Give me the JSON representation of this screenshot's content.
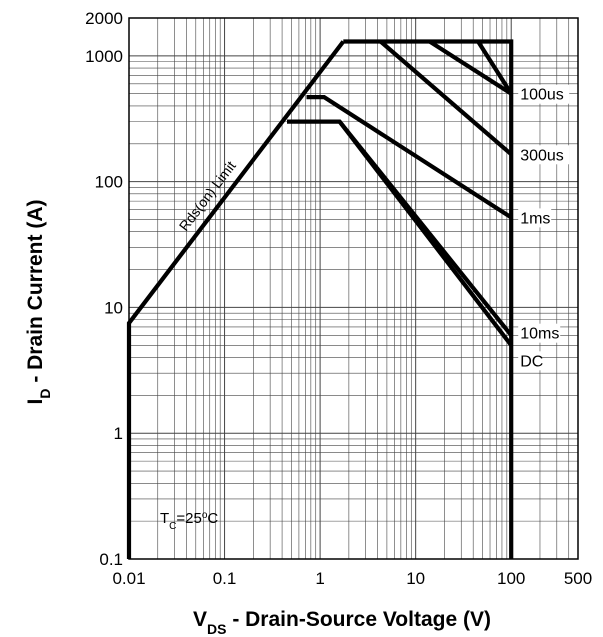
{
  "chart_data": {
    "type": "line",
    "title": "",
    "xlabel": {
      "main": "V",
      "sub": "DS",
      "rest": " - Drain-Source Voltage (V)"
    },
    "ylabel": {
      "main": "I",
      "sub": "D",
      "rest": " - Drain Current (A)"
    },
    "x_scale": "log",
    "y_scale": "log",
    "xlim": [
      0.01,
      500
    ],
    "ylim": [
      0.1,
      2000
    ],
    "grid": true,
    "x_ticks": [
      {
        "value": 0.01,
        "label": "0.01"
      },
      {
        "value": 0.1,
        "label": "0.1"
      },
      {
        "value": 1,
        "label": "1"
      },
      {
        "value": 10,
        "label": "10"
      },
      {
        "value": 100,
        "label": "100"
      },
      {
        "value": 500,
        "label": "500"
      }
    ],
    "y_ticks": [
      {
        "value": 0.1,
        "label": "0.1"
      },
      {
        "value": 1,
        "label": "1"
      },
      {
        "value": 10,
        "label": "10"
      },
      {
        "value": 100,
        "label": "100"
      },
      {
        "value": 1000,
        "label": "1000"
      },
      {
        "value": 2000,
        "label": "2000"
      }
    ],
    "rds_limit": {
      "label": "Rds(on) Limit",
      "points": [
        [
          0.01,
          7.5
        ],
        [
          1.75,
          1300
        ]
      ]
    },
    "series": [
      {
        "name": "100us",
        "points": [
          [
            1.75,
            1300
          ],
          [
            100,
            1300
          ],
          [
            100,
            0.1
          ]
        ]
      },
      {
        "name": "100us",
        "points": [
          [
            45,
            1300
          ],
          [
            100,
            500
          ]
        ]
      },
      {
        "name": "100us",
        "points": [
          [
            14,
            1300
          ],
          [
            100,
            500
          ]
        ]
      },
      {
        "name": "300us",
        "points": [
          [
            4.3,
            1300
          ],
          [
            100,
            165
          ]
        ]
      },
      {
        "name": "1ms",
        "points": [
          [
            0.72,
            470
          ],
          [
            1.1,
            470
          ],
          [
            100,
            52
          ]
        ]
      },
      {
        "name": "10ms",
        "points": [
          [
            0.45,
            300
          ],
          [
            1.6,
            300
          ],
          [
            100,
            6
          ]
        ]
      },
      {
        "name": "DC",
        "points": [
          [
            1.6,
            300
          ],
          [
            100,
            5
          ]
        ]
      }
    ],
    "series_labels": [
      {
        "name": "100us",
        "x": 100,
        "y": 500
      },
      {
        "name": "300us",
        "x": 100,
        "y": 165
      },
      {
        "name": "1ms",
        "x": 100,
        "y": 52
      },
      {
        "name": "10ms",
        "x": 100,
        "y": 6.3
      },
      {
        "name": "DC",
        "x": 100,
        "y": 3.8
      }
    ],
    "annotation": {
      "main": "T",
      "sub": "C",
      "rest": "=25",
      "deg": "o",
      "unit": "C"
    }
  }
}
